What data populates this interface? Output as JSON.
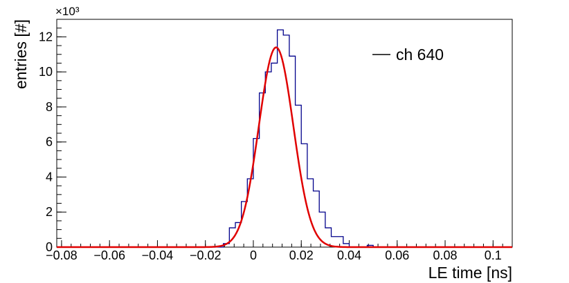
{
  "chart_data": {
    "type": "histogram",
    "title": "",
    "xlabel": "LE time [ns]",
    "ylabel": "entries [#]",
    "y_exponent_label": "×10³",
    "y_multiplier": 1000,
    "xlim": [
      -0.082,
      0.108
    ],
    "ylim": [
      0,
      13000
    ],
    "x_ticks": [
      -0.08,
      -0.06,
      -0.04,
      -0.02,
      0,
      0.02,
      0.04,
      0.06,
      0.08,
      0.1
    ],
    "x_tick_labels": [
      "−0.08",
      "−0.06",
      "−0.04",
      "−0.02",
      "0",
      "0.02",
      "0.04",
      "0.06",
      "0.08",
      "0.1"
    ],
    "y_ticks": [
      0,
      2000,
      4000,
      6000,
      8000,
      10000,
      12000
    ],
    "y_tick_labels": [
      "0",
      "2",
      "4",
      "6",
      "8",
      "10",
      "12"
    ],
    "legend": {
      "placement": "top-right",
      "entries": [
        {
          "label": "ch 640",
          "color": "#000000"
        }
      ]
    },
    "series": [
      {
        "kind": "histogram",
        "color": "#00008b",
        "bin_width": 0.0025,
        "bin_edges_start": -0.0125,
        "values": [
          200,
          1100,
          1400,
          2600,
          3900,
          6200,
          8800,
          10000,
          10500,
          12400,
          12100,
          10900,
          8100,
          5900,
          3900,
          3200,
          2000,
          1100,
          600,
          600,
          200,
          0,
          0,
          0,
          100
        ]
      },
      {
        "kind": "gaussian_fit",
        "color": "#e00000",
        "amplitude": 11400,
        "mean": 0.0095,
        "sigma": 0.0072
      }
    ]
  }
}
